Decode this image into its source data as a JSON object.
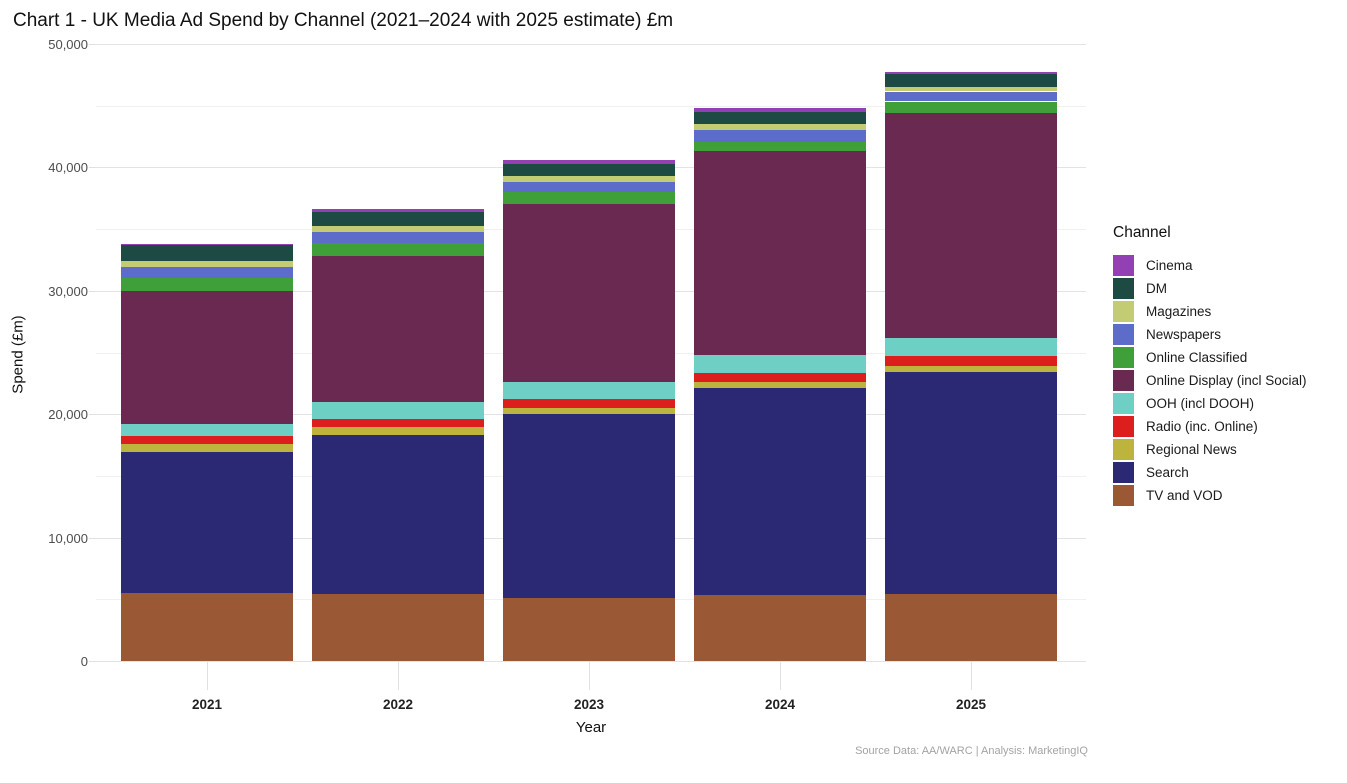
{
  "title": "Chart 1 - UK Media Ad Spend by Channel (2021–2024 with 2025 estimate) £m",
  "source_note": "Source Data: AA/WARC | Analysis: MarketingIQ",
  "chart_data": {
    "type": "bar",
    "stacked": true,
    "title": "Chart 1 - UK Media Ad Spend by Channel (2021–2024 with 2025 estimate) £m",
    "xlabel": "Year",
    "ylabel": "Spend (£m)",
    "legend_title": "Channel",
    "legend_position": "right",
    "grid": true,
    "ylim": [
      0,
      50000
    ],
    "y_major_step": 10000,
    "y_minor_step": 5000,
    "y_tick_labels": [
      "0",
      "10,000",
      "20,000",
      "30,000",
      "40,000",
      "50,000"
    ],
    "categories": [
      "2021",
      "2022",
      "2023",
      "2024",
      "2025"
    ],
    "series": [
      {
        "name": "Cinema",
        "color": "#9340b5",
        "values": [
          130,
          270,
          320,
          270,
          160
        ]
      },
      {
        "name": "DM",
        "color": "#1d4b43",
        "values": [
          1300,
          1170,
          1000,
          1000,
          1000
        ]
      },
      {
        "name": "Magazines",
        "color": "#c3cc73",
        "values": [
          490,
          450,
          490,
          480,
          400
        ]
      },
      {
        "name": "Newspapers",
        "color": "#5e6cc9",
        "values": [
          890,
          890,
          810,
          1000,
          810
        ]
      },
      {
        "name": "Online Classified",
        "color": "#3fa03a",
        "values": [
          1050,
          1080,
          1000,
          730,
          940
        ]
      },
      {
        "name": "Online Display (incl Social)",
        "color": "#6a2950",
        "values": [
          10750,
          11800,
          14430,
          16530,
          18200
        ]
      },
      {
        "name": "OOH (incl DOOH)",
        "color": "#6ecfc4",
        "values": [
          950,
          1350,
          1300,
          1430,
          1470
        ]
      },
      {
        "name": "Radio (inc. Online)",
        "color": "#dc1f1c",
        "values": [
          680,
          680,
          730,
          760,
          820
        ]
      },
      {
        "name": "Regional News",
        "color": "#bcb43c",
        "values": [
          620,
          620,
          490,
          450,
          490
        ]
      },
      {
        "name": "Search",
        "color": "#2b2973",
        "values": [
          11400,
          12950,
          14950,
          16800,
          18000
        ]
      },
      {
        "name": "TV and VOD",
        "color": "#9b5835",
        "values": [
          5550,
          5400,
          5100,
          5340,
          5420
        ]
      }
    ],
    "stack_order_bottom_to_top": [
      "TV and VOD",
      "Search",
      "Regional News",
      "Radio (inc. Online)",
      "OOH (incl DOOH)",
      "Online Display (incl Social)",
      "Online Classified",
      "Newspapers",
      "Magazines",
      "DM",
      "Cinema"
    ],
    "totals_by_year": [
      33810,
      36660,
      40620,
      44790,
      47710
    ]
  }
}
